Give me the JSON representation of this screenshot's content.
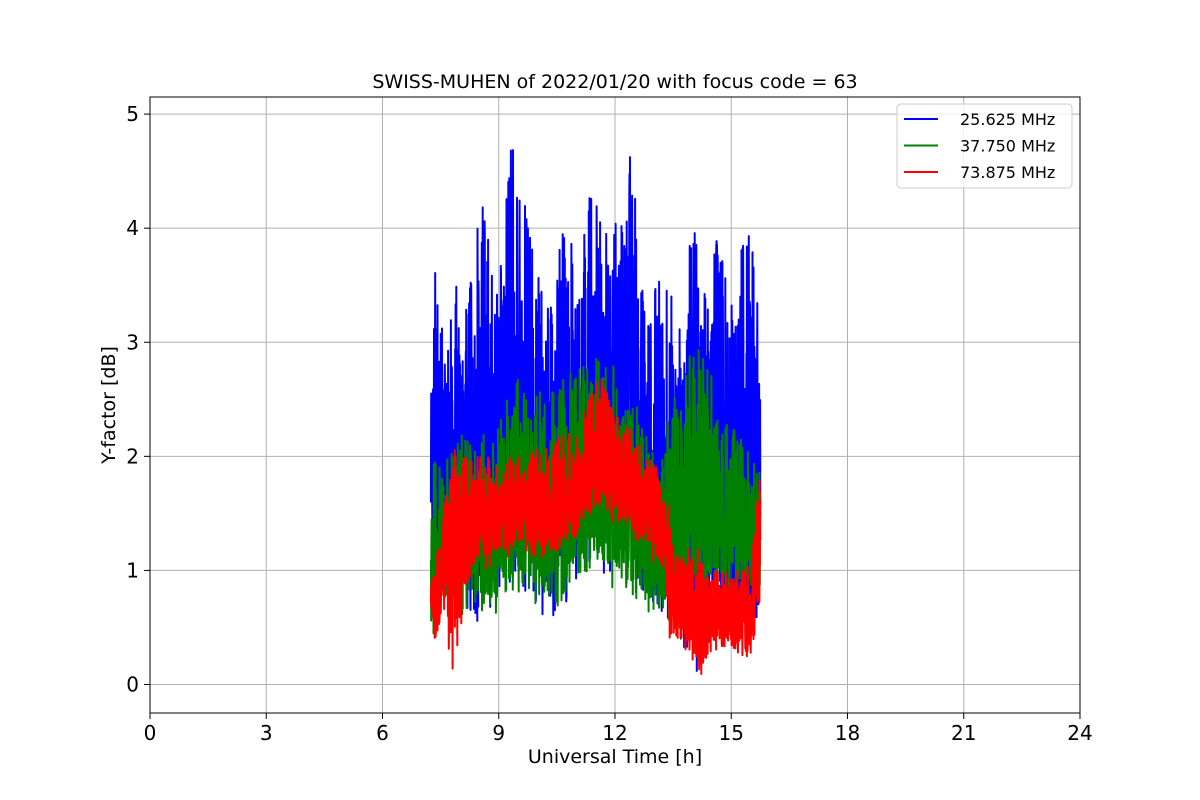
{
  "chart_data": {
    "type": "line",
    "title": "SWISS-MUHEN of 2022/01/20 with focus code = 63",
    "xlabel": "Universal Time [h]",
    "ylabel": "Y-factor [dB]",
    "xlim": [
      0,
      24
    ],
    "ylim": [
      -0.25,
      5.15
    ],
    "xticks": [
      "0",
      "3",
      "6",
      "9",
      "12",
      "15",
      "18",
      "21",
      "24"
    ],
    "yticks": [
      "0",
      "1",
      "2",
      "3",
      "4",
      "5"
    ],
    "grid": true,
    "legend_position": "top-right",
    "series": [
      {
        "name": "25.625 MHz",
        "color": "#0000ff",
        "x": [
          7.25,
          7.3,
          7.4,
          7.5,
          7.7,
          8.0,
          8.3,
          8.6,
          8.9,
          9.1,
          9.3,
          9.5,
          9.7,
          9.9,
          10.1,
          10.4,
          10.7,
          11.0,
          11.3,
          11.6,
          11.9,
          12.2,
          12.5,
          12.8,
          13.1,
          13.4,
          13.7,
          14.0,
          14.3,
          14.6,
          14.9,
          15.2,
          15.5,
          15.75
        ],
        "low": [
          1.0,
          0.9,
          0.8,
          0.75,
          0.6,
          0.6,
          0.55,
          0.5,
          0.65,
          0.7,
          0.8,
          0.85,
          0.8,
          0.75,
          0.6,
          0.55,
          0.65,
          0.9,
          0.95,
          0.95,
          1.0,
          0.9,
          0.85,
          0.75,
          0.6,
          0.5,
          0.4,
          0.0,
          0.3,
          0.3,
          0.25,
          0.3,
          0.3,
          0.3
        ],
        "high": [
          2.9,
          3.3,
          4.3,
          3.4,
          3.3,
          3.6,
          3.8,
          4.3,
          3.6,
          3.7,
          4.9,
          4.3,
          4.4,
          3.9,
          3.5,
          3.5,
          4.1,
          3.7,
          4.4,
          4.3,
          3.7,
          4.7,
          4.7,
          3.6,
          3.6,
          3.5,
          3.2,
          4.2,
          3.4,
          4.1,
          3.6,
          3.85,
          3.95,
          3.2
        ]
      },
      {
        "name": "37.750 MHz",
        "color": "#008000",
        "x": [
          7.25,
          7.3,
          7.4,
          7.5,
          7.7,
          8.0,
          8.3,
          8.6,
          8.9,
          9.1,
          9.3,
          9.5,
          9.7,
          9.9,
          10.1,
          10.4,
          10.7,
          11.0,
          11.3,
          11.6,
          11.9,
          12.2,
          12.5,
          12.8,
          13.1,
          13.4,
          13.7,
          14.0,
          14.3,
          14.6,
          14.9,
          15.2,
          15.5,
          15.75
        ],
        "low": [
          0.0,
          0.4,
          0.5,
          0.55,
          0.6,
          0.6,
          0.65,
          0.6,
          0.6,
          0.7,
          0.75,
          0.8,
          0.75,
          0.7,
          0.6,
          0.65,
          0.75,
          0.9,
          0.95,
          0.9,
          0.85,
          0.85,
          0.75,
          0.65,
          0.6,
          0.55,
          0.6,
          0.65,
          0.7,
          0.75,
          0.8,
          0.8,
          0.85,
          0.85
        ],
        "high": [
          1.9,
          2.0,
          1.9,
          2.0,
          2.1,
          2.2,
          2.2,
          2.25,
          2.2,
          2.4,
          2.6,
          2.7,
          2.6,
          2.5,
          2.6,
          2.6,
          2.7,
          2.8,
          2.8,
          2.9,
          2.9,
          2.7,
          2.5,
          2.2,
          2.1,
          2.5,
          2.7,
          3.0,
          3.1,
          2.5,
          2.3,
          2.2,
          2.0,
          1.9
        ]
      },
      {
        "name": "73.875 MHz",
        "color": "#ff0000",
        "x": [
          7.25,
          7.3,
          7.4,
          7.5,
          7.7,
          7.9,
          8.1,
          8.4,
          8.7,
          9.0,
          9.3,
          9.6,
          9.9,
          10.2,
          10.5,
          10.8,
          11.1,
          11.4,
          11.7,
          12.0,
          12.3,
          12.6,
          12.9,
          13.2,
          13.4,
          13.6,
          13.9,
          14.2,
          14.5,
          14.8,
          15.1,
          15.4,
          15.6,
          15.75
        ],
        "low": [
          0.6,
          0.35,
          0.4,
          0.5,
          0.3,
          0.0,
          0.7,
          1.1,
          1.0,
          1.1,
          1.1,
          1.15,
          1.1,
          1.1,
          1.15,
          1.2,
          1.3,
          1.4,
          1.5,
          1.4,
          1.3,
          1.2,
          1.1,
          1.0,
          0.4,
          0.3,
          0.3,
          0.05,
          0.25,
          0.25,
          0.3,
          0.2,
          0.3,
          0.8
        ],
        "high": [
          1.05,
          0.9,
          1.2,
          1.4,
          1.9,
          2.2,
          2.0,
          2.0,
          2.0,
          1.9,
          2.0,
          2.0,
          2.1,
          2.1,
          2.2,
          2.2,
          2.3,
          2.6,
          2.7,
          2.4,
          2.3,
          2.2,
          2.0,
          1.9,
          1.6,
          1.1,
          1.2,
          1.2,
          1.1,
          1.0,
          1.0,
          1.0,
          1.4,
          1.9
        ]
      }
    ]
  }
}
